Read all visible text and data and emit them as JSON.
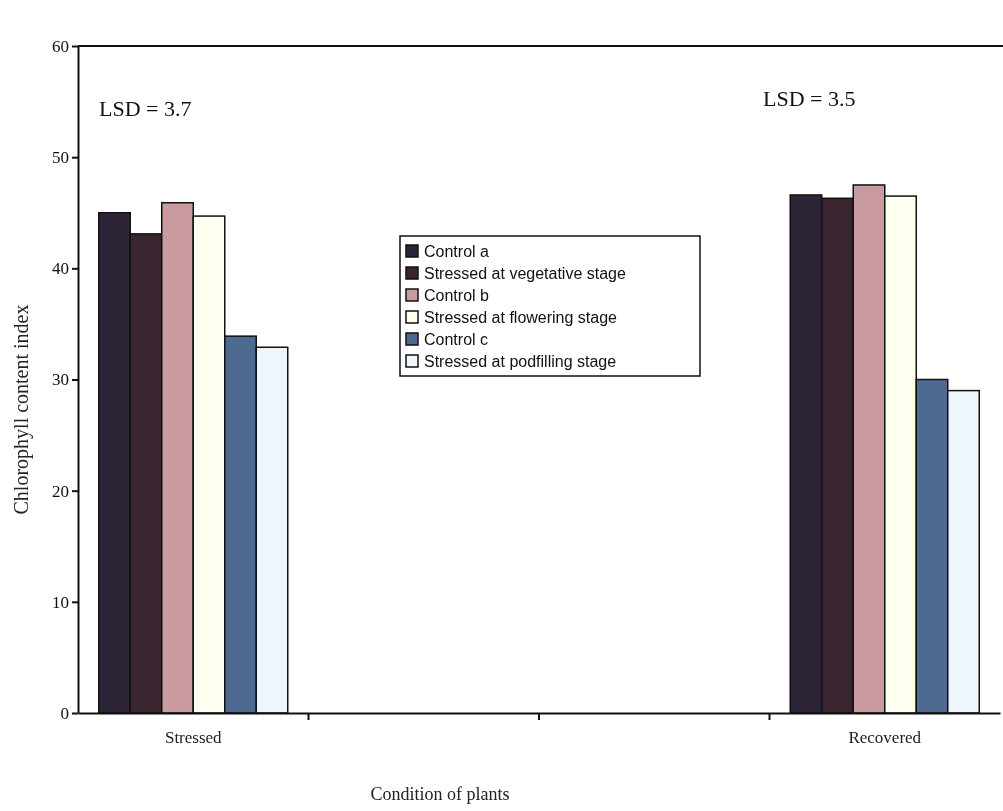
{
  "chart_data": {
    "type": "bar",
    "xlabel": "Condition of plants",
    "ylabel": "Chlorophyll content index",
    "categories": [
      "Stressed",
      null,
      null,
      "Recovered"
    ],
    "series": [
      {
        "name": "Control a",
        "color": "#2e2438",
        "values": [
          45.0,
          null,
          null,
          46.6
        ]
      },
      {
        "name": "Stressed at vegetative stage",
        "color": "#3a2430",
        "values": [
          43.1,
          null,
          null,
          46.3
        ]
      },
      {
        "name": "Control b",
        "color": "#c99aa0",
        "values": [
          45.9,
          null,
          null,
          47.5
        ]
      },
      {
        "name": "Stressed at flowering stage",
        "color": "#fffff0",
        "values": [
          44.7,
          null,
          null,
          46.5
        ]
      },
      {
        "name": "Control c",
        "color": "#4e6a90",
        "values": [
          33.9,
          null,
          null,
          30.0
        ]
      },
      {
        "name": "Stressed at podfilling stage",
        "color": "#eef6fb",
        "values": [
          32.9,
          null,
          null,
          29.0
        ]
      }
    ],
    "ylim": [
      0,
      60
    ],
    "yticks": [
      0,
      10,
      20,
      30,
      40,
      50,
      60
    ],
    "annotations": [
      "LSD = 3.7",
      "LSD = 3.5"
    ],
    "legend": "center",
    "grid": false
  }
}
